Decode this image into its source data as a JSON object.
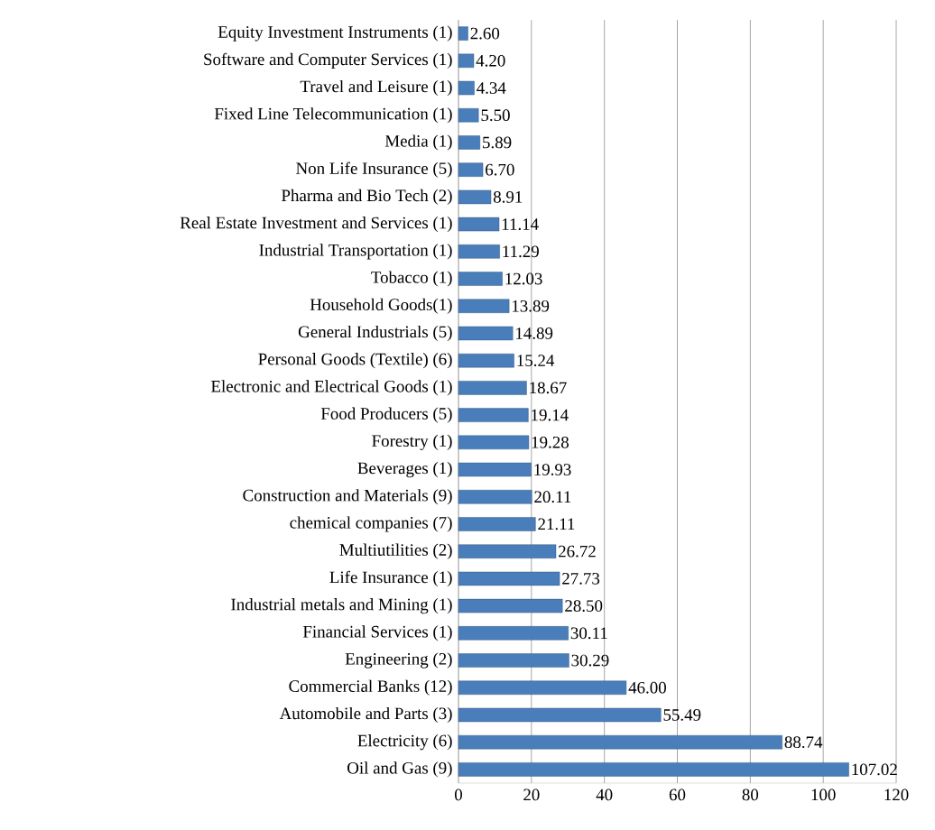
{
  "chart_data": {
    "type": "bar",
    "orientation": "horizontal",
    "categories": [
      "Equity Investment Instruments (1)",
      "Software and Computer Services (1)",
      "Travel and Leisure (1)",
      "Fixed Line Telecommunication (1)",
      "Media (1)",
      "Non Life Insurance (5)",
      "Pharma and Bio Tech (2)",
      "Real Estate Investment and Services (1)",
      "Industrial Transportation (1)",
      "Tobacco (1)",
      "Household Goods(1)",
      "General Industrials (5)",
      "Personal Goods (Textile) (6)",
      "Electronic and Electrical Goods (1)",
      "Food Producers (5)",
      "Forestry (1)",
      "Beverages (1)",
      "Construction and Materials (9)",
      "chemical companies (7)",
      "Multiutilities (2)",
      "Life Insurance (1)",
      "Industrial metals and Mining (1)",
      "Financial Services (1)",
      "Engineering (2)",
      "Commercial Banks (12)",
      "Automobile and Parts (3)",
      "Electricity (6)",
      "Oil and Gas (9)"
    ],
    "values": [
      2.6,
      4.2,
      4.34,
      5.5,
      5.89,
      6.7,
      8.91,
      11.14,
      11.29,
      12.03,
      13.89,
      14.89,
      15.24,
      18.67,
      19.14,
      19.28,
      19.93,
      20.11,
      21.11,
      26.72,
      27.73,
      28.5,
      30.11,
      30.29,
      46.0,
      55.49,
      88.74,
      107.02
    ],
    "value_labels": [
      "2.60",
      "4.20",
      "4.34",
      "5.50",
      "5.89",
      "6.70",
      "8.91",
      "11.14",
      "11.29",
      "12.03",
      "13.89",
      "14.89",
      "15.24",
      "18.67",
      "19.14",
      "19.28",
      "19.93",
      "20.11",
      "21.11",
      "26.72",
      "27.73",
      "28.50",
      "30.11",
      "30.29",
      "46.00",
      "55.49",
      "88.74",
      "107.02"
    ],
    "color": "#4a7ebb",
    "xlim": [
      0,
      120
    ],
    "xticks": [
      0,
      20,
      40,
      60,
      80,
      100,
      120
    ],
    "grid": "x"
  }
}
